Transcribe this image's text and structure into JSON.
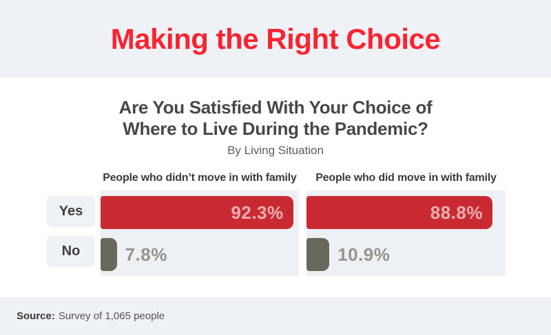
{
  "header": {
    "title": "Making the Right Choice",
    "accent_color": "#f82431"
  },
  "chart_data": {
    "type": "bar",
    "orientation": "horizontal",
    "title": "Are You Satisfied With Your Choice of Where to Live During the Pandemic?",
    "title_lines": [
      "Are You Satisfied With Your Choice of",
      "Where to Live During the Pandemic?"
    ],
    "subtitle": "By Living Situation",
    "categories": [
      "Yes",
      "No"
    ],
    "series": [
      {
        "name": "People who didn’t move in with family",
        "values": [
          92.3,
          7.8
        ],
        "display": [
          "92.3%",
          "7.8%"
        ]
      },
      {
        "name": "People who did move in with family",
        "values": [
          88.8,
          10.9
        ],
        "display": [
          "88.8%",
          "10.9%"
        ]
      }
    ],
    "xlim": [
      0,
      100
    ],
    "grid": false,
    "legend_position": "none",
    "colors": {
      "yes_bar": "#c92a31",
      "no_bar": "#67695a",
      "yes_value_text": "#e9aeb3",
      "no_value_text": "#94968a",
      "panel_background": "#edf0f5"
    }
  },
  "footer": {
    "source_label": "Source:",
    "source_text": "Survey of 1,065 people"
  }
}
